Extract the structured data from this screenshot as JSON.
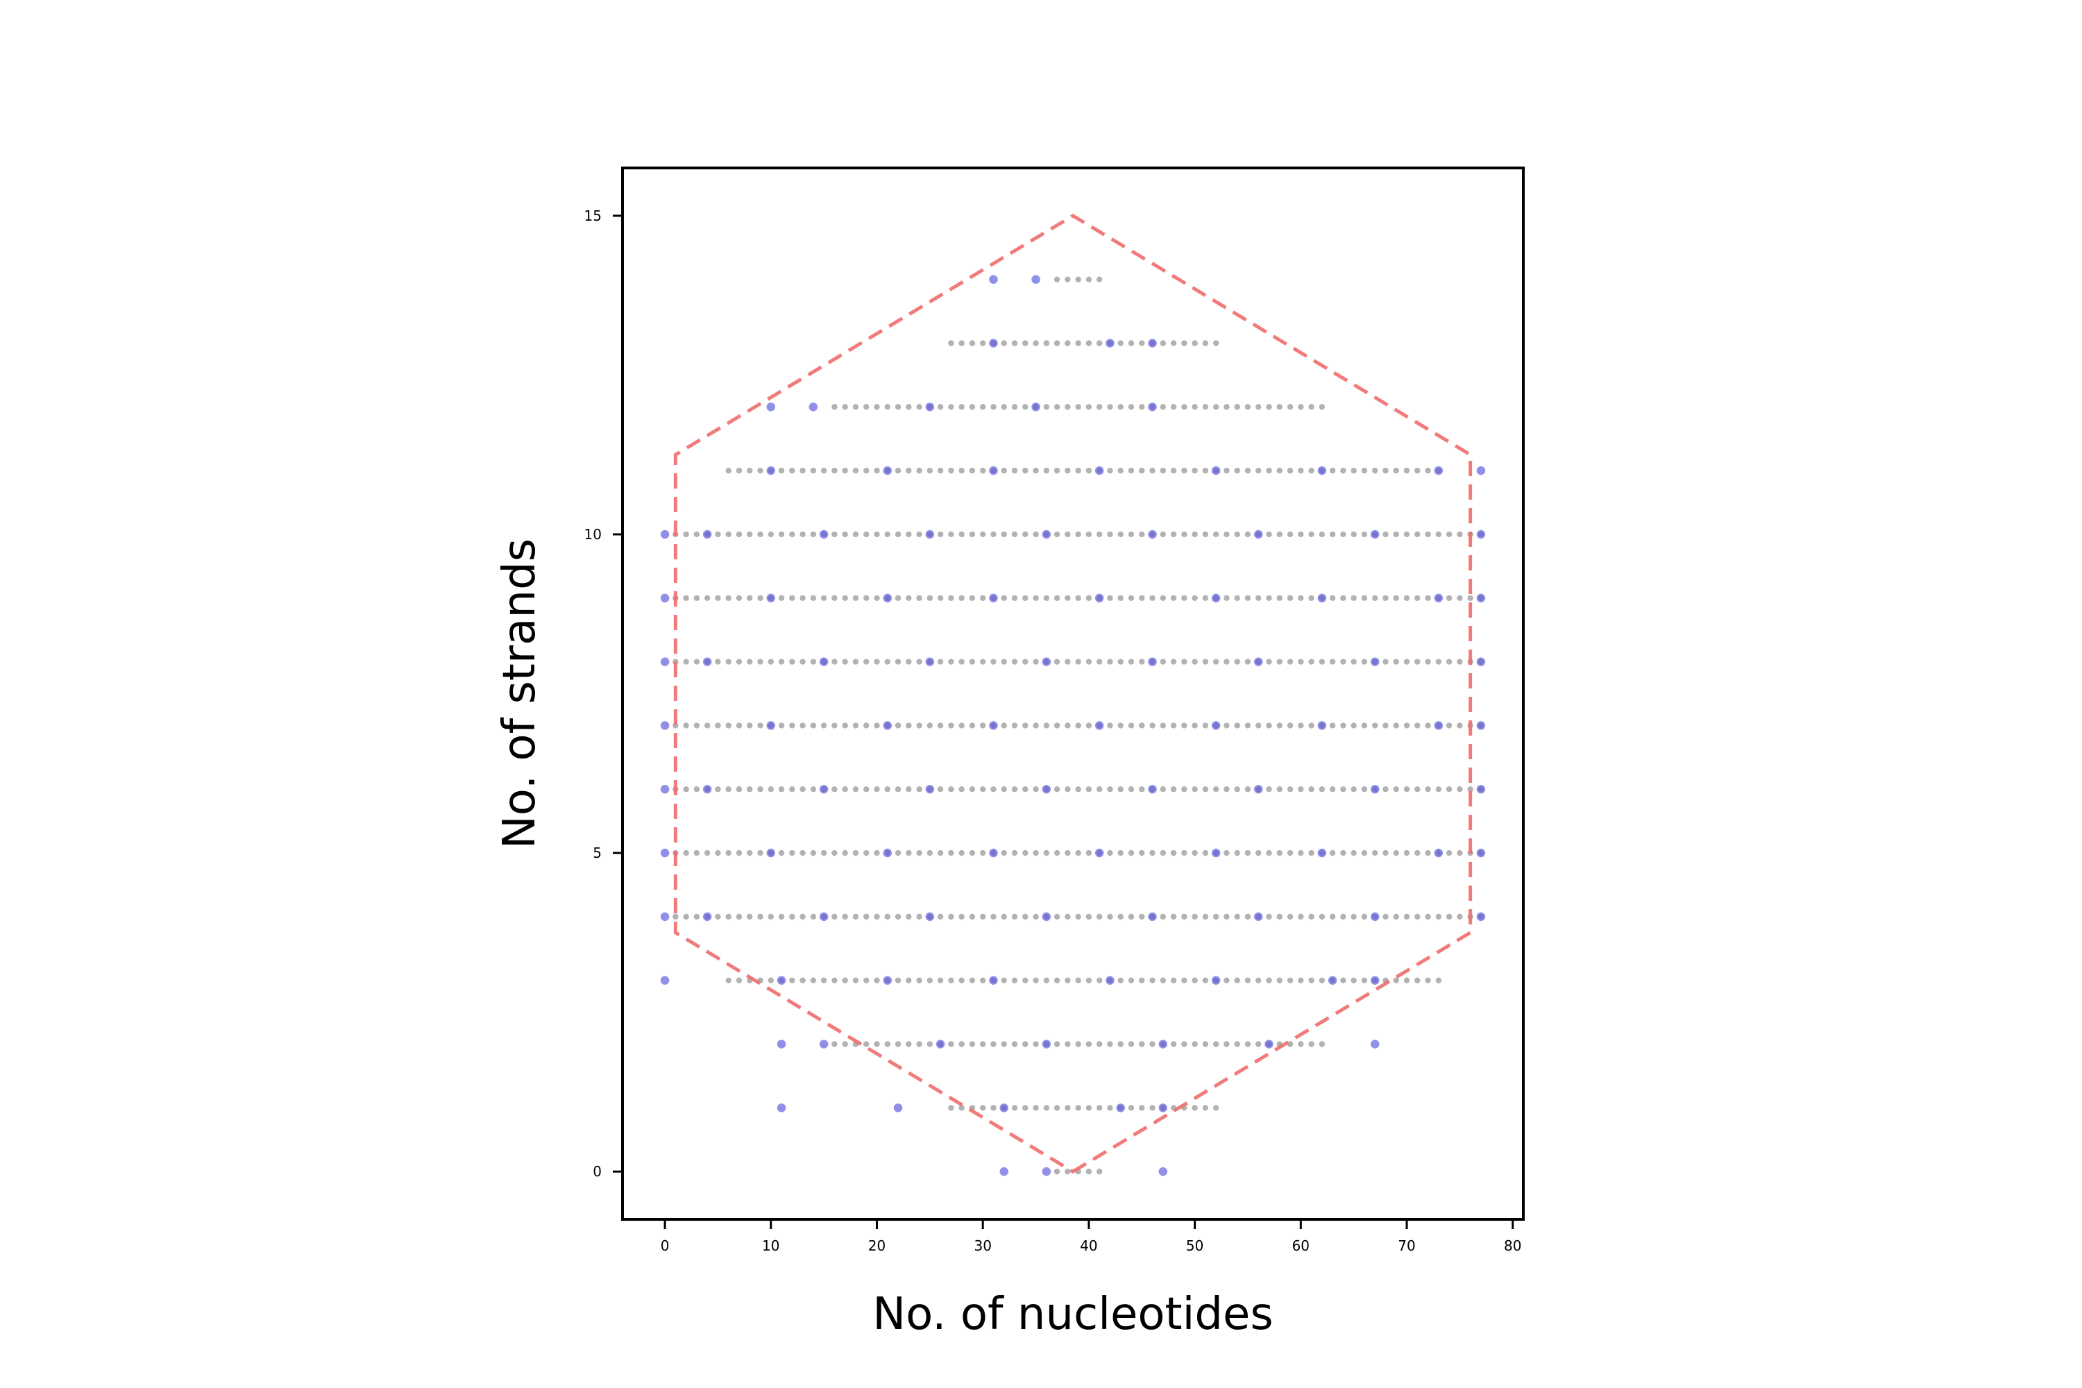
{
  "chart_data": {
    "type": "scatter",
    "title": "",
    "xlabel": "No. of nucleotides",
    "ylabel": "No. of strands",
    "xlim": [
      -4,
      81
    ],
    "ylim": [
      -0.75,
      15.75
    ],
    "xticks": [
      0,
      10,
      20,
      30,
      40,
      50,
      60,
      70,
      80
    ],
    "yticks": [
      0,
      5,
      10,
      15
    ],
    "xtick_labels": [
      "0",
      "10",
      "20",
      "30",
      "40",
      "50",
      "60",
      "70",
      "80"
    ],
    "ytick_labels": [
      "0",
      "5",
      "10",
      "15"
    ],
    "grid": false,
    "legend": "none",
    "colors": {
      "base": "#aaaaaa",
      "crossover": "#5555dd",
      "boundary": "#ef6b6b",
      "axes": "#000000"
    },
    "series": [
      {
        "style": "small gray dots (base positions)",
        "rows": [
          {
            "y": 14,
            "x_from": 37,
            "x_to": 41,
            "step": 1
          },
          {
            "y": 13,
            "x_from": 27,
            "x_to": 52,
            "step": 1
          },
          {
            "y": 12,
            "x_from": 16,
            "x_to": 62,
            "step": 1
          },
          {
            "y": 11,
            "x_from": 6,
            "x_to": 73,
            "step": 1
          },
          {
            "y": 10,
            "x_from": 1,
            "x_to": 77,
            "step": 1
          },
          {
            "y": 9,
            "x_from": 1,
            "x_to": 77,
            "step": 1
          },
          {
            "y": 8,
            "x_from": 1,
            "x_to": 77,
            "step": 1
          },
          {
            "y": 7,
            "x_from": 1,
            "x_to": 77,
            "step": 1
          },
          {
            "y": 6,
            "x_from": 1,
            "x_to": 77,
            "step": 1
          },
          {
            "y": 5,
            "x_from": 1,
            "x_to": 77,
            "step": 1
          },
          {
            "y": 4,
            "x_from": 1,
            "x_to": 77,
            "step": 1
          },
          {
            "y": 3,
            "x_from": 6,
            "x_to": 73,
            "step": 1
          },
          {
            "y": 2,
            "x_from": 16,
            "x_to": 62,
            "step": 1
          },
          {
            "y": 1,
            "x_from": 27,
            "x_to": 52,
            "step": 1
          },
          {
            "y": 0,
            "x_from": 37,
            "x_to": 41,
            "step": 1
          }
        ]
      },
      {
        "style": "blue dots (crossover positions)",
        "points": [
          [
            31,
            14
          ],
          [
            35,
            14
          ],
          [
            31,
            13
          ],
          [
            42,
            13
          ],
          [
            46,
            13
          ],
          [
            10,
            12
          ],
          [
            14,
            12
          ],
          [
            25,
            12
          ],
          [
            35,
            12
          ],
          [
            46,
            12
          ],
          [
            10,
            11
          ],
          [
            21,
            11
          ],
          [
            31,
            11
          ],
          [
            41,
            11
          ],
          [
            52,
            11
          ],
          [
            62,
            11
          ],
          [
            73,
            11
          ],
          [
            77,
            11
          ],
          [
            0,
            10
          ],
          [
            4,
            10
          ],
          [
            15,
            10
          ],
          [
            25,
            10
          ],
          [
            36,
            10
          ],
          [
            46,
            10
          ],
          [
            56,
            10
          ],
          [
            67,
            10
          ],
          [
            77,
            10
          ],
          [
            0,
            9
          ],
          [
            10,
            9
          ],
          [
            21,
            9
          ],
          [
            31,
            9
          ],
          [
            41,
            9
          ],
          [
            52,
            9
          ],
          [
            62,
            9
          ],
          [
            73,
            9
          ],
          [
            77,
            9
          ],
          [
            0,
            8
          ],
          [
            4,
            8
          ],
          [
            15,
            8
          ],
          [
            25,
            8
          ],
          [
            36,
            8
          ],
          [
            46,
            8
          ],
          [
            56,
            8
          ],
          [
            67,
            8
          ],
          [
            77,
            8
          ],
          [
            0,
            7
          ],
          [
            10,
            7
          ],
          [
            21,
            7
          ],
          [
            31,
            7
          ],
          [
            41,
            7
          ],
          [
            52,
            7
          ],
          [
            62,
            7
          ],
          [
            73,
            7
          ],
          [
            77,
            7
          ],
          [
            0,
            6
          ],
          [
            4,
            6
          ],
          [
            15,
            6
          ],
          [
            25,
            6
          ],
          [
            36,
            6
          ],
          [
            46,
            6
          ],
          [
            56,
            6
          ],
          [
            67,
            6
          ],
          [
            77,
            6
          ],
          [
            0,
            5
          ],
          [
            10,
            5
          ],
          [
            21,
            5
          ],
          [
            31,
            5
          ],
          [
            41,
            5
          ],
          [
            52,
            5
          ],
          [
            62,
            5
          ],
          [
            73,
            5
          ],
          [
            77,
            5
          ],
          [
            0,
            4
          ],
          [
            4,
            4
          ],
          [
            15,
            4
          ],
          [
            25,
            4
          ],
          [
            36,
            4
          ],
          [
            46,
            4
          ],
          [
            56,
            4
          ],
          [
            67,
            4
          ],
          [
            77,
            4
          ],
          [
            0,
            3
          ],
          [
            11,
            3
          ],
          [
            21,
            3
          ],
          [
            31,
            3
          ],
          [
            42,
            3
          ],
          [
            52,
            3
          ],
          [
            63,
            3
          ],
          [
            67,
            3
          ],
          [
            11,
            2
          ],
          [
            15,
            2
          ],
          [
            26,
            2
          ],
          [
            36,
            2
          ],
          [
            47,
            2
          ],
          [
            57,
            2
          ],
          [
            67,
            2
          ],
          [
            11,
            1
          ],
          [
            22,
            1
          ],
          [
            32,
            1
          ],
          [
            43,
            1
          ],
          [
            47,
            1
          ],
          [
            32,
            0
          ],
          [
            36,
            0
          ],
          [
            47,
            0
          ]
        ]
      },
      {
        "style": "dashed red hexagon outline",
        "points": [
          [
            38.5,
            0
          ],
          [
            76,
            3.75
          ],
          [
            76,
            11.25
          ],
          [
            38.5,
            15
          ],
          [
            1,
            11.25
          ],
          [
            1,
            3.75
          ]
        ]
      }
    ]
  }
}
